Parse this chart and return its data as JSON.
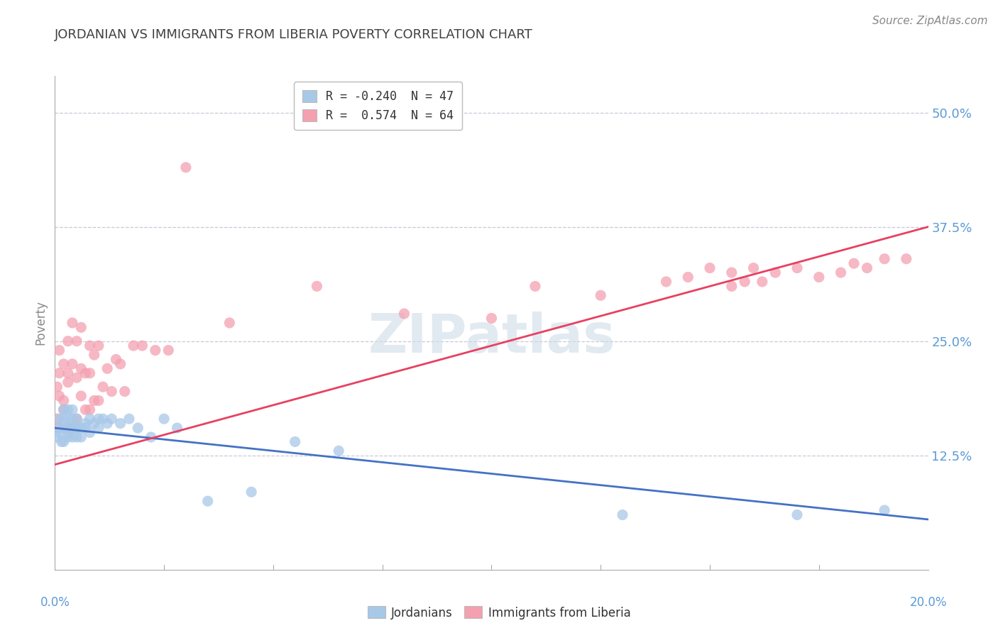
{
  "title": "JORDANIAN VS IMMIGRANTS FROM LIBERIA POVERTY CORRELATION CHART",
  "source": "Source: ZipAtlas.com",
  "ylabel": "Poverty",
  "xlim": [
    0.0,
    0.2
  ],
  "ylim": [
    0.0,
    0.54
  ],
  "yticks": [
    0.125,
    0.25,
    0.375,
    0.5
  ],
  "ytick_labels": [
    "12.5%",
    "25.0%",
    "37.5%",
    "50.0%"
  ],
  "legend_r1": "R = -0.240  N = 47",
  "legend_r2": "R =  0.574  N = 64",
  "legend_label_jordanians": "Jordanians",
  "legend_label_liberia": "Immigrants from Liberia",
  "jordanians_color": "#a8c8e8",
  "liberia_color": "#f4a0b0",
  "trendline_jordanians_color": "#4472c4",
  "trendline_liberia_color": "#e84060",
  "watermark": "ZIPatlas",
  "background_color": "#ffffff",
  "grid_color": "#c8c8d8",
  "axis_label_color": "#5b9bd5",
  "title_color": "#404040",
  "jordanians_x": [
    0.0005,
    0.001,
    0.001,
    0.001,
    0.0015,
    0.002,
    0.002,
    0.002,
    0.002,
    0.003,
    0.003,
    0.003,
    0.003,
    0.003,
    0.004,
    0.004,
    0.004,
    0.004,
    0.005,
    0.005,
    0.005,
    0.005,
    0.006,
    0.006,
    0.007,
    0.007,
    0.008,
    0.008,
    0.009,
    0.01,
    0.01,
    0.011,
    0.012,
    0.013,
    0.015,
    0.017,
    0.019,
    0.022,
    0.025,
    0.028,
    0.035,
    0.045,
    0.055,
    0.065,
    0.13,
    0.17,
    0.19
  ],
  "jordanians_y": [
    0.145,
    0.155,
    0.165,
    0.15,
    0.14,
    0.155,
    0.165,
    0.14,
    0.175,
    0.15,
    0.165,
    0.145,
    0.175,
    0.155,
    0.155,
    0.165,
    0.145,
    0.175,
    0.155,
    0.165,
    0.145,
    0.155,
    0.155,
    0.145,
    0.16,
    0.155,
    0.165,
    0.15,
    0.16,
    0.155,
    0.165,
    0.165,
    0.16,
    0.165,
    0.16,
    0.165,
    0.155,
    0.145,
    0.165,
    0.155,
    0.075,
    0.085,
    0.14,
    0.13,
    0.06,
    0.06,
    0.065
  ],
  "liberia_x": [
    0.0005,
    0.0005,
    0.001,
    0.001,
    0.001,
    0.001,
    0.002,
    0.002,
    0.002,
    0.003,
    0.003,
    0.003,
    0.003,
    0.004,
    0.004,
    0.004,
    0.005,
    0.005,
    0.005,
    0.006,
    0.006,
    0.006,
    0.007,
    0.007,
    0.008,
    0.008,
    0.008,
    0.009,
    0.009,
    0.01,
    0.01,
    0.011,
    0.012,
    0.013,
    0.014,
    0.015,
    0.016,
    0.018,
    0.02,
    0.023,
    0.026,
    0.03,
    0.04,
    0.06,
    0.08,
    0.1,
    0.11,
    0.125,
    0.14,
    0.145,
    0.15,
    0.155,
    0.155,
    0.158,
    0.16,
    0.162,
    0.165,
    0.17,
    0.175,
    0.18,
    0.183,
    0.186,
    0.19,
    0.195
  ],
  "liberia_y": [
    0.165,
    0.2,
    0.155,
    0.215,
    0.19,
    0.24,
    0.175,
    0.225,
    0.185,
    0.155,
    0.215,
    0.205,
    0.25,
    0.155,
    0.225,
    0.27,
    0.165,
    0.21,
    0.25,
    0.19,
    0.22,
    0.265,
    0.175,
    0.215,
    0.175,
    0.215,
    0.245,
    0.185,
    0.235,
    0.185,
    0.245,
    0.2,
    0.22,
    0.195,
    0.23,
    0.225,
    0.195,
    0.245,
    0.245,
    0.24,
    0.24,
    0.44,
    0.27,
    0.31,
    0.28,
    0.275,
    0.31,
    0.3,
    0.315,
    0.32,
    0.33,
    0.31,
    0.325,
    0.315,
    0.33,
    0.315,
    0.325,
    0.33,
    0.32,
    0.325,
    0.335,
    0.33,
    0.34,
    0.34
  ],
  "trendline_j_x0": 0.0,
  "trendline_j_y0": 0.155,
  "trendline_j_x1": 0.2,
  "trendline_j_y1": 0.055,
  "trendline_l_x0": 0.0,
  "trendline_l_y0": 0.115,
  "trendline_l_x1": 0.2,
  "trendline_l_y1": 0.375
}
